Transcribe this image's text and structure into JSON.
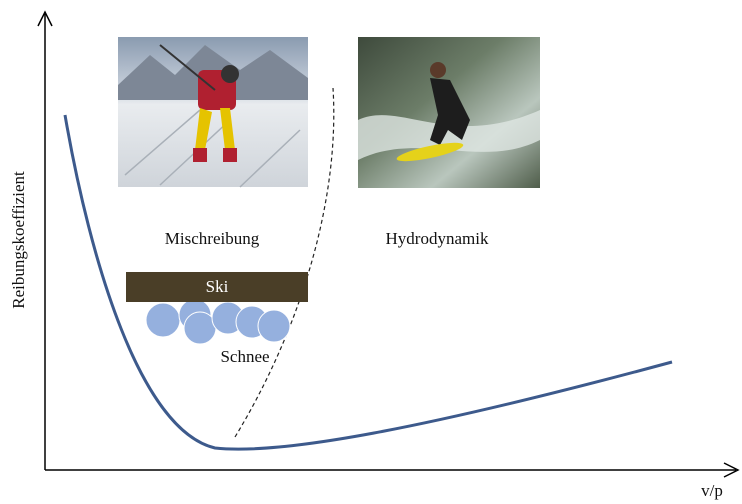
{
  "axes": {
    "y_label": "Reibungskoeffizient",
    "x_label": "v/p"
  },
  "regions": [
    {
      "label": "Mischreibung"
    },
    {
      "label": "Hydrodynamik"
    }
  ],
  "ski_diagram": {
    "ski": "Ski",
    "snow": "Schnee"
  }
}
